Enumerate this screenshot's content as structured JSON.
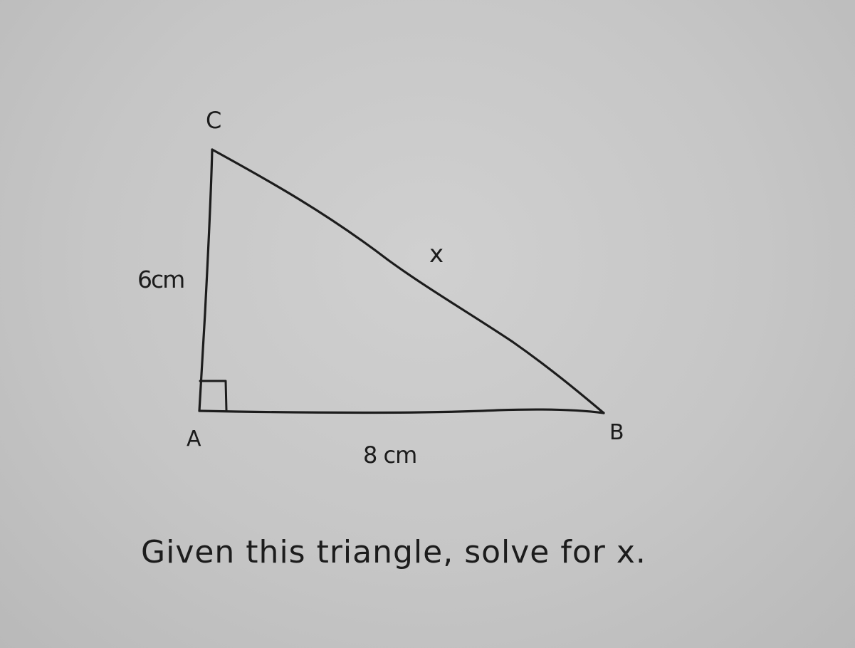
{
  "vertices": {
    "a": "A",
    "b": "B",
    "c": "C"
  },
  "sides": {
    "ac": "6cm",
    "ab": "8 cm",
    "bc": "x"
  },
  "caption": "Given this triangle, solve for x.",
  "colors": {
    "ink": "#1c1c1c",
    "paper": "#c9c9c9"
  }
}
